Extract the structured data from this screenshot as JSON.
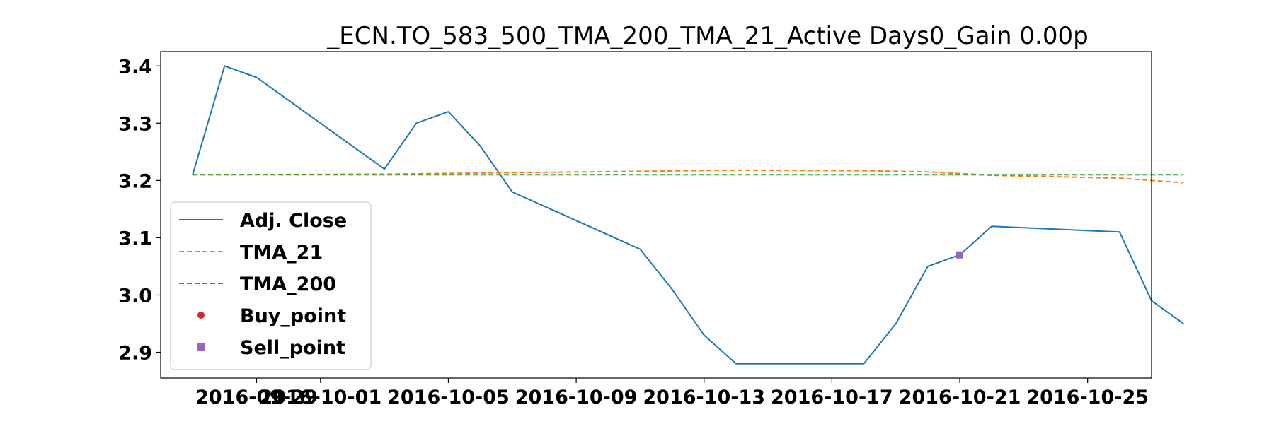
{
  "chart_data": {
    "type": "line",
    "title": "_ECN.TO_583_500_TMA_200_TMA_21_Active Days0_Gain   0.00p",
    "xlabel": "",
    "ylabel": "",
    "x_type": "date",
    "xlim": [
      "2016-09-26",
      "2016-10-27"
    ],
    "ylim": [
      2.855,
      3.425
    ],
    "x_ticks": [
      "2016-09-29",
      "2016-10-01",
      "2016-10-05",
      "2016-10-09",
      "2016-10-13",
      "2016-10-17",
      "2016-10-21",
      "2016-10-25"
    ],
    "y_ticks": [
      2.9,
      3.0,
      3.1,
      3.2,
      3.3,
      3.4
    ],
    "y_tick_labels": [
      "2.9",
      "3.0",
      "3.1",
      "3.2",
      "3.3",
      "3.4"
    ],
    "grid": false,
    "legend_position": "lower-left",
    "series": [
      {
        "name": "Adj. Close",
        "style": "solid",
        "color": "#1f77b4",
        "points": [
          [
            "2016-09-27",
            3.21
          ],
          [
            "2016-09-28",
            3.4
          ],
          [
            "2016-09-29",
            3.38
          ],
          [
            "2016-10-03",
            3.22
          ],
          [
            "2016-10-04",
            3.3
          ],
          [
            "2016-10-05",
            3.32
          ],
          [
            "2016-10-06",
            3.26
          ],
          [
            "2016-10-07",
            3.18
          ],
          [
            "2016-10-11",
            3.08
          ],
          [
            "2016-10-12",
            3.01
          ],
          [
            "2016-10-13",
            2.93
          ],
          [
            "2016-10-14",
            2.88
          ],
          [
            "2016-10-18",
            2.88
          ],
          [
            "2016-10-19",
            2.95
          ],
          [
            "2016-10-20",
            3.05
          ],
          [
            "2016-10-21",
            3.07
          ],
          [
            "2016-10-22",
            3.12
          ],
          [
            "2016-10-26",
            3.11
          ],
          [
            "2016-10-27",
            2.99
          ],
          [
            "2016-10-28",
            2.95
          ]
        ]
      },
      {
        "name": "TMA_21",
        "style": "dashed",
        "color": "#ff7f0e",
        "points": [
          [
            "2016-09-27",
            3.21
          ],
          [
            "2016-10-03",
            3.211
          ],
          [
            "2016-10-06",
            3.213
          ],
          [
            "2016-10-11",
            3.216
          ],
          [
            "2016-10-14",
            3.218
          ],
          [
            "2016-10-18",
            3.217
          ],
          [
            "2016-10-20",
            3.215
          ],
          [
            "2016-10-22",
            3.209
          ],
          [
            "2016-10-26",
            3.204
          ],
          [
            "2016-10-28",
            3.196
          ]
        ]
      },
      {
        "name": "TMA_200",
        "style": "dashed",
        "color": "#2ca02c",
        "points": [
          [
            "2016-09-27",
            3.21
          ],
          [
            "2016-10-28",
            3.21
          ]
        ]
      }
    ],
    "markers": [
      {
        "name": "Buy_point",
        "shape": "circle",
        "color": "#d62728",
        "points": []
      },
      {
        "name": "Sell_point",
        "shape": "square",
        "color": "#9467bd",
        "points": [
          [
            "2016-10-21",
            3.07
          ]
        ]
      }
    ]
  }
}
